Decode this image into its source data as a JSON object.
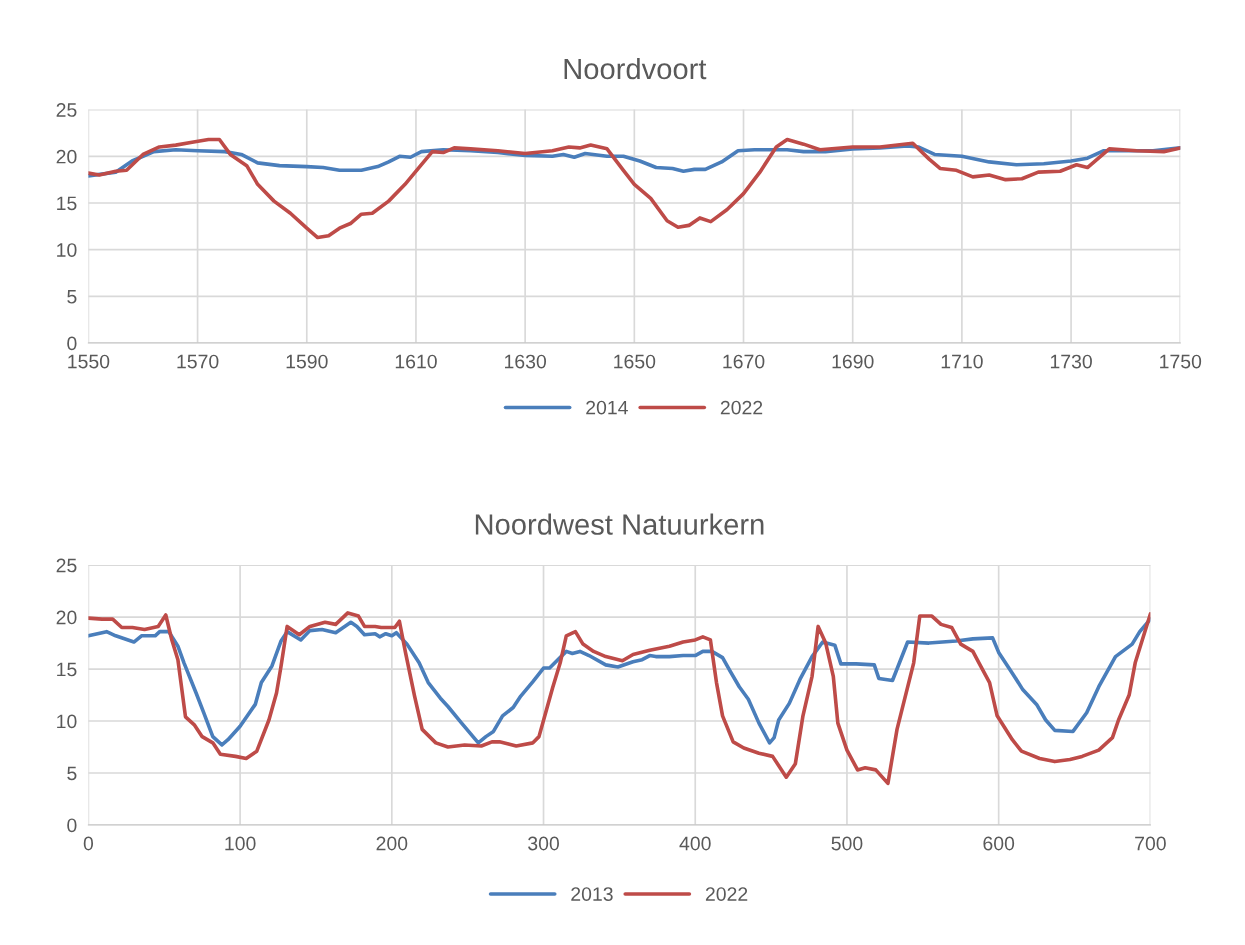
{
  "chart_data": [
    {
      "type": "line",
      "title": "Noordvoort",
      "xlim": [
        1550,
        1750
      ],
      "xticks": [
        1550,
        1570,
        1590,
        1610,
        1630,
        1650,
        1670,
        1690,
        1710,
        1730,
        1750
      ],
      "ylim": [
        0,
        25
      ],
      "yticks": [
        0,
        5,
        10,
        15,
        20,
        25
      ],
      "grid": true,
      "legend": "bottom",
      "series": [
        {
          "name": "2014",
          "color": "#4a7ebb",
          "x": [
            1550,
            1555,
            1558,
            1562,
            1566,
            1570,
            1575,
            1578,
            1581,
            1585,
            1590,
            1593,
            1596,
            1600,
            1603,
            1605,
            1607,
            1609,
            1611,
            1615,
            1620,
            1625,
            1630,
            1635,
            1637,
            1639,
            1641,
            1645,
            1648,
            1651,
            1654,
            1657,
            1659,
            1661,
            1663,
            1666,
            1669,
            1672,
            1678,
            1681,
            1685,
            1690,
            1695,
            1700,
            1702,
            1705,
            1710,
            1715,
            1720,
            1725,
            1730,
            1733,
            1736,
            1740,
            1745,
            1750
          ],
          "values": [
            17.9,
            18.3,
            19.5,
            20.5,
            20.7,
            20.6,
            20.5,
            20.2,
            19.3,
            19.0,
            18.9,
            18.8,
            18.5,
            18.5,
            18.9,
            19.4,
            20.0,
            19.9,
            20.5,
            20.7,
            20.6,
            20.4,
            20.1,
            20.0,
            20.2,
            19.9,
            20.3,
            20.0,
            20.0,
            19.5,
            18.8,
            18.7,
            18.4,
            18.6,
            18.6,
            19.4,
            20.6,
            20.7,
            20.7,
            20.5,
            20.5,
            20.8,
            20.9,
            21.1,
            21.0,
            20.2,
            20.0,
            19.4,
            19.1,
            19.2,
            19.5,
            19.8,
            20.6,
            20.6,
            20.6,
            20.9
          ]
        },
        {
          "name": "2022",
          "color": "#be4b48",
          "x": [
            1550,
            1552,
            1555,
            1557,
            1560,
            1563,
            1566,
            1569,
            1572,
            1574,
            1576,
            1579,
            1581,
            1584,
            1587,
            1590,
            1592,
            1594,
            1596,
            1598,
            1600,
            1602,
            1605,
            1608,
            1611,
            1613,
            1615,
            1617,
            1620,
            1625,
            1630,
            1635,
            1638,
            1640,
            1642,
            1645,
            1648,
            1650,
            1653,
            1656,
            1658,
            1660,
            1662,
            1664,
            1667,
            1670,
            1673,
            1676,
            1678,
            1681,
            1684,
            1690,
            1695,
            1701,
            1704,
            1706,
            1709,
            1712,
            1715,
            1718,
            1721,
            1724,
            1728,
            1731,
            1733,
            1737,
            1742,
            1747,
            1750
          ],
          "values": [
            18.2,
            18.0,
            18.4,
            18.5,
            20.2,
            21.0,
            21.2,
            21.5,
            21.8,
            21.8,
            20.2,
            19.0,
            17.0,
            15.2,
            13.9,
            12.3,
            11.3,
            11.5,
            12.3,
            12.8,
            13.8,
            13.9,
            15.2,
            17.0,
            19.1,
            20.5,
            20.4,
            20.9,
            20.8,
            20.6,
            20.3,
            20.6,
            21.0,
            20.9,
            21.2,
            20.8,
            18.5,
            17.0,
            15.5,
            13.1,
            12.4,
            12.6,
            13.4,
            13.0,
            14.3,
            16.0,
            18.3,
            21.0,
            21.8,
            21.3,
            20.7,
            21.0,
            21.0,
            21.4,
            19.7,
            18.7,
            18.5,
            17.8,
            18.0,
            17.5,
            17.6,
            18.3,
            18.4,
            19.1,
            18.8,
            20.8,
            20.6,
            20.5,
            20.9
          ]
        }
      ]
    },
    {
      "type": "line",
      "title": "Noordwest Natuurkern",
      "xlim": [
        0,
        700
      ],
      "xticks": [
        0,
        100,
        200,
        300,
        400,
        500,
        600,
        700
      ],
      "ylim": [
        0,
        25
      ],
      "yticks": [
        0,
        5,
        10,
        15,
        20,
        25
      ],
      "grid": true,
      "legend": "bottom",
      "series": [
        {
          "name": "2013",
          "color": "#4a7ebb",
          "x": [
            0,
            12,
            18,
            30,
            35,
            44,
            47,
            53,
            59,
            63,
            71,
            76,
            82,
            88,
            92,
            100,
            110,
            114,
            121,
            127,
            131,
            140,
            146,
            154,
            163,
            173,
            177,
            182,
            189,
            192,
            196,
            200,
            203,
            210,
            218,
            224,
            232,
            237,
            246,
            257,
            262,
            267,
            273,
            280,
            285,
            293,
            300,
            304,
            315,
            319,
            324,
            330,
            341,
            349,
            359,
            365,
            370,
            374,
            383,
            392,
            400,
            405,
            411,
            418,
            423,
            429,
            435,
            442,
            449,
            452,
            455,
            462,
            469,
            477,
            484,
            492,
            496,
            506,
            518,
            521,
            530,
            540,
            554,
            572,
            583,
            596,
            600,
            609,
            616,
            625,
            631,
            637,
            649,
            658,
            666,
            677,
            688,
            693,
            700
          ],
          "values": [
            18.2,
            18.6,
            18.2,
            17.6,
            18.2,
            18.2,
            18.6,
            18.6,
            17.2,
            15.6,
            12.7,
            10.8,
            8.5,
            7.7,
            8.2,
            9.5,
            11.6,
            13.7,
            15.3,
            17.7,
            18.6,
            17.8,
            18.7,
            18.8,
            18.5,
            19.5,
            19.1,
            18.3,
            18.4,
            18.1,
            18.4,
            18.2,
            18.5,
            17.4,
            15.6,
            13.7,
            12.2,
            11.4,
            9.8,
            7.9,
            8.5,
            9.0,
            10.5,
            11.3,
            12.4,
            13.8,
            15.1,
            15.1,
            16.7,
            16.5,
            16.7,
            16.3,
            15.4,
            15.2,
            15.7,
            15.9,
            16.3,
            16.2,
            16.2,
            16.3,
            16.3,
            16.7,
            16.7,
            16.1,
            14.8,
            13.3,
            12.1,
            9.8,
            7.9,
            8.4,
            10.1,
            11.7,
            14.0,
            16.2,
            17.6,
            17.3,
            15.5,
            15.5,
            15.4,
            14.1,
            13.9,
            17.6,
            17.5,
            17.7,
            17.9,
            18.0,
            16.6,
            14.6,
            13.0,
            11.6,
            10.1,
            9.1,
            9.0,
            10.8,
            13.3,
            16.2,
            17.4,
            18.6,
            19.8
          ]
        },
        {
          "name": "2022",
          "color": "#be4b48",
          "x": [
            0,
            9,
            16,
            22,
            29,
            37,
            46,
            51,
            55,
            59,
            64,
            70,
            75,
            82,
            87,
            97,
            104,
            111,
            119,
            124,
            127,
            131,
            139,
            146,
            156,
            163,
            171,
            178,
            182,
            189,
            193,
            202,
            205,
            209,
            215,
            220,
            229,
            237,
            248,
            259,
            266,
            271,
            282,
            293,
            297,
            302,
            306,
            311,
            315,
            321,
            326,
            333,
            341,
            352,
            359,
            370,
            383,
            392,
            400,
            405,
            410,
            414,
            418,
            425,
            432,
            442,
            451,
            460,
            466,
            471,
            477,
            481,
            486,
            491,
            494,
            500,
            507,
            512,
            519,
            527,
            533,
            544,
            548,
            556,
            562,
            569,
            575,
            583,
            587,
            594,
            599,
            609,
            615,
            627,
            637,
            647,
            655,
            666,
            675,
            679,
            686,
            690,
            700
          ],
          "values": [
            19.9,
            19.8,
            19.8,
            19.0,
            19.0,
            18.8,
            19.1,
            20.2,
            17.8,
            15.9,
            10.4,
            9.6,
            8.5,
            7.9,
            6.8,
            6.6,
            6.4,
            7.1,
            10.1,
            12.7,
            15.3,
            19.1,
            18.3,
            19.1,
            19.5,
            19.3,
            20.4,
            20.1,
            19.1,
            19.1,
            19.0,
            19.0,
            19.6,
            16.6,
            12.4,
            9.2,
            7.9,
            7.5,
            7.7,
            7.6,
            8.0,
            8.0,
            7.6,
            7.9,
            8.5,
            11.1,
            13.2,
            15.6,
            18.2,
            18.6,
            17.4,
            16.7,
            16.2,
            15.8,
            16.4,
            16.8,
            17.2,
            17.6,
            17.8,
            18.1,
            17.8,
            13.7,
            10.5,
            8.0,
            7.4,
            6.9,
            6.6,
            4.6,
            5.9,
            10.5,
            14.3,
            19.1,
            17.5,
            14.3,
            9.8,
            7.2,
            5.3,
            5.5,
            5.3,
            4.0,
            9.2,
            15.6,
            20.1,
            20.1,
            19.3,
            19.0,
            17.4,
            16.7,
            15.6,
            13.7,
            10.5,
            8.2,
            7.1,
            6.4,
            6.1,
            6.3,
            6.6,
            7.2,
            8.4,
            10.1,
            12.5,
            15.6,
            20.3
          ]
        }
      ]
    }
  ]
}
